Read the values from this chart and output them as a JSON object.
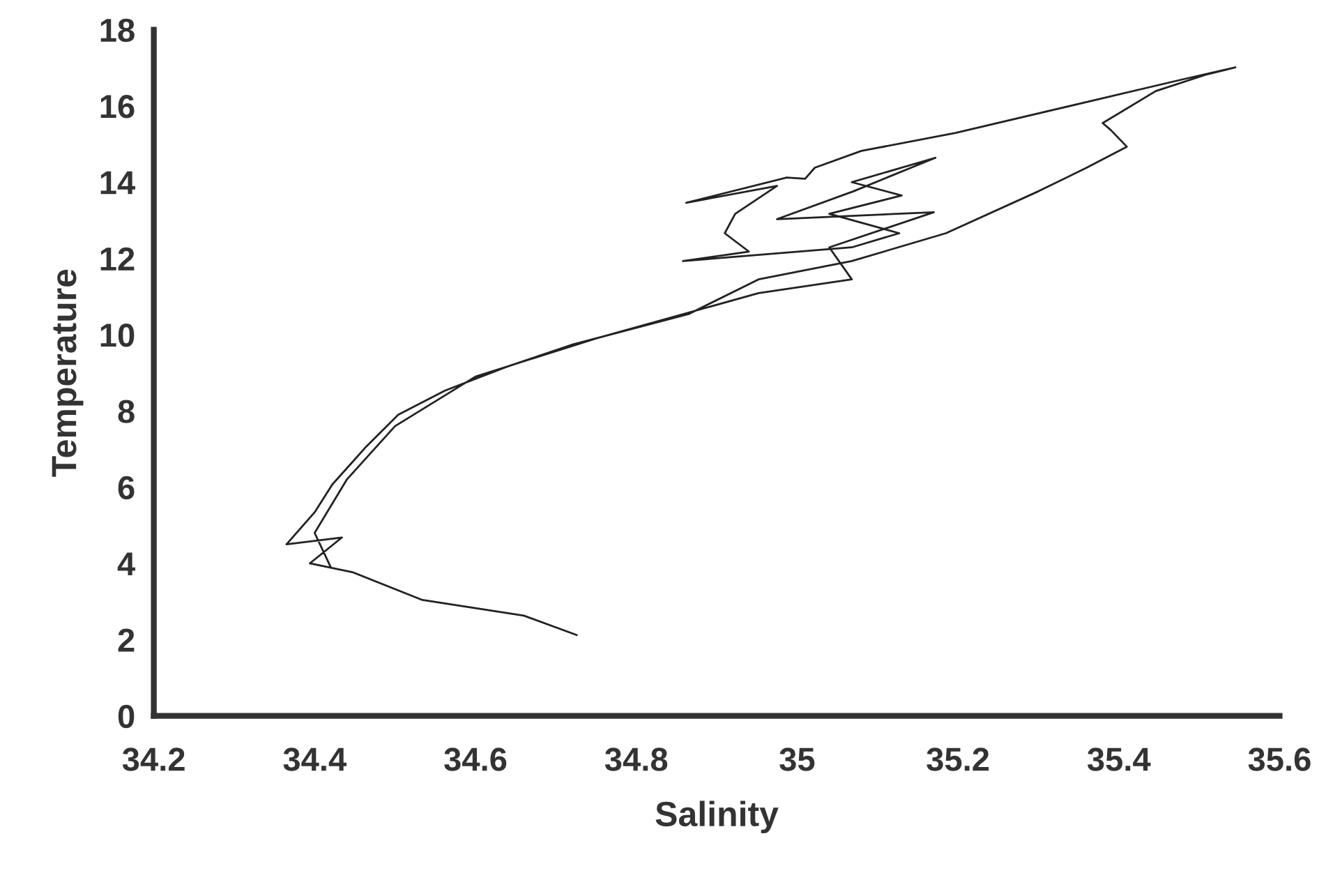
{
  "chart_data": {
    "type": "line",
    "xlabel": "Salinity",
    "ylabel": "Temperature",
    "xlim": [
      34.2,
      35.6
    ],
    "ylim": [
      0,
      18
    ],
    "xticks": [
      34.2,
      34.4,
      34.6,
      34.8,
      35,
      35.2,
      35.4,
      35.6
    ],
    "yticks": [
      0,
      2,
      4,
      6,
      8,
      10,
      12,
      14,
      16,
      18
    ],
    "grid": false,
    "marker": "none",
    "line_style": "solid",
    "series": [
      {
        "color": "#222222",
        "x": [
          34.726,
          34.66,
          34.534,
          34.447,
          34.394,
          34.434,
          34.365,
          34.4,
          34.422,
          34.464,
          34.504,
          34.562,
          34.638,
          34.719,
          34.865,
          34.952,
          35.068,
          35.185,
          35.3,
          35.36,
          35.41,
          35.39,
          35.38,
          35.446,
          35.51,
          35.545,
          35.476,
          35.197,
          35.08,
          35.022,
          35.01,
          34.987,
          34.862,
          34.975,
          34.923,
          34.91,
          34.94,
          34.858,
          35.068,
          35.127,
          35.04,
          35.13,
          35.068,
          35.172,
          35.07,
          34.975,
          35.17,
          35.04,
          35.068,
          34.952,
          34.75,
          34.6,
          34.5,
          34.44,
          34.4,
          34.42
        ],
        "values": [
          2.12,
          2.63,
          3.04,
          3.77,
          4.0,
          4.68,
          4.5,
          5.34,
          6.07,
          7.06,
          7.9,
          8.53,
          9.15,
          9.73,
          10.54,
          11.45,
          11.93,
          12.66,
          13.76,
          14.38,
          14.93,
          15.37,
          15.55,
          16.39,
          16.83,
          17.01,
          16.68,
          15.29,
          14.82,
          14.38,
          14.09,
          14.12,
          13.46,
          13.9,
          13.17,
          12.66,
          12.18,
          11.93,
          12.29,
          12.66,
          13.17,
          13.65,
          14.0,
          14.64,
          13.76,
          13.03,
          13.21,
          12.29,
          11.45,
          11.09,
          9.9,
          8.9,
          7.6,
          6.2,
          4.8,
          3.9
        ]
      }
    ]
  }
}
